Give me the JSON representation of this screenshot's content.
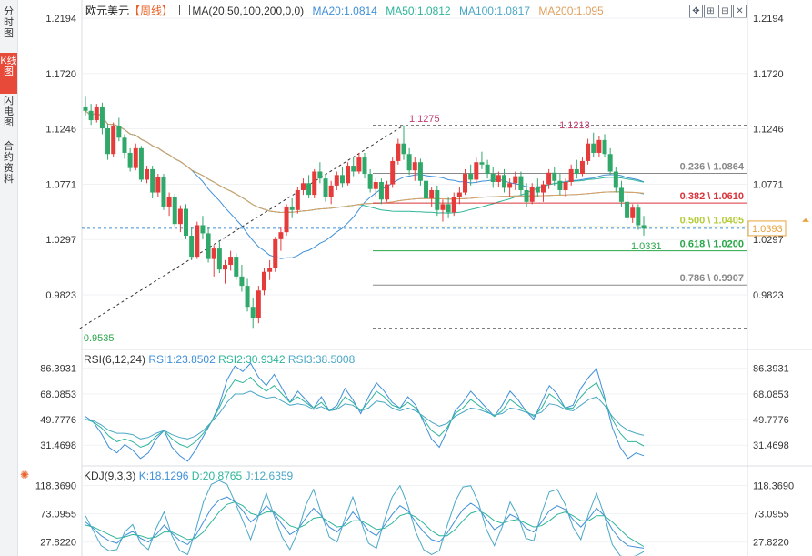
{
  "side_tabs": [
    "分时图",
    "K线图",
    "闪电图",
    "合约资料"
  ],
  "active_tab": 1,
  "header": {
    "symbol": "欧元美元",
    "period": "【周线】",
    "ma_label": "MA(20,50,100,200,0,0)",
    "ma_values": [
      {
        "label": "MA20:1.0814",
        "color": "#3f8fd8"
      },
      {
        "label": "MA50:1.0812",
        "color": "#2fb59a"
      },
      {
        "label": "MA100:1.0817",
        "color": "#4aa8c6"
      },
      {
        "label": "MA200:1.095",
        "color": "#e0a060"
      }
    ]
  },
  "toolbar_icons": [
    "expand-icon",
    "crosshair-icon",
    "draw-icon",
    "close-icon"
  ],
  "chart_data": [
    {
      "type": "candlestick",
      "name": "price",
      "y_ticks": [
        1.2194,
        1.172,
        1.1246,
        1.0771,
        1.0297,
        0.9823
      ],
      "ylim": [
        0.9823,
        1.2194
      ],
      "last_price": 1.0393,
      "last_price_color": "#e8a23a",
      "high_label": "1.1275",
      "low_label": "0.9535",
      "recent_high_label": "1.1213",
      "recent_low_label": "1.0331",
      "fib_levels": [
        {
          "label": "0.236 \\ 1.0864",
          "value": 1.0864,
          "color": "#888888"
        },
        {
          "label": "0.382 \\ 1.0610",
          "value": 1.061,
          "color": "#d9343b"
        },
        {
          "label": "0.500 \\ 1.0405",
          "value": 1.0405,
          "color": "#b5cc3b"
        },
        {
          "label": "0.618 \\ 1.0200",
          "value": 1.02,
          "color": "#2aa64a"
        },
        {
          "label": "0.786 \\ 0.9907",
          "value": 0.9907,
          "color": "#888888"
        }
      ],
      "fib_top": 1.1275,
      "fib_bottom": 0.9535,
      "up_color": "#e63b3b",
      "down_color": "#2fa86a",
      "candles": [
        [
          1.143,
          1.152,
          1.136,
          1.14
        ],
        [
          1.14,
          1.146,
          1.128,
          1.132
        ],
        [
          1.132,
          1.146,
          1.13,
          1.143
        ],
        [
          1.143,
          1.147,
          1.12,
          1.125
        ],
        [
          1.125,
          1.129,
          1.098,
          1.103
        ],
        [
          1.103,
          1.13,
          1.1,
          1.127
        ],
        [
          1.127,
          1.134,
          1.114,
          1.117
        ],
        [
          1.117,
          1.12,
          1.099,
          1.104
        ],
        [
          1.104,
          1.108,
          1.088,
          1.091
        ],
        [
          1.091,
          1.112,
          1.089,
          1.108
        ],
        [
          1.108,
          1.11,
          1.079,
          1.081
        ],
        [
          1.081,
          1.093,
          1.078,
          1.09
        ],
        [
          1.09,
          1.093,
          1.065,
          1.07
        ],
        [
          1.07,
          1.086,
          1.066,
          1.083
        ],
        [
          1.083,
          1.086,
          1.055,
          1.058
        ],
        [
          1.058,
          1.07,
          1.05,
          1.066
        ],
        [
          1.066,
          1.069,
          1.04,
          1.043
        ],
        [
          1.043,
          1.059,
          1.036,
          1.056
        ],
        [
          1.056,
          1.06,
          1.03,
          1.033
        ],
        [
          1.033,
          1.04,
          1.012,
          1.015
        ],
        [
          1.015,
          1.045,
          1.013,
          1.042
        ],
        [
          1.042,
          1.05,
          1.03,
          1.035
        ],
        [
          1.035,
          1.04,
          1.01,
          1.013
        ],
        [
          1.013,
          1.025,
          0.998,
          1.022
        ],
        [
          1.022,
          1.028,
          1.001,
          1.004
        ],
        [
          1.004,
          1.012,
          0.992,
          1.008
        ],
        [
          1.008,
          1.02,
          1.003,
          1.015
        ],
        [
          1.015,
          1.018,
          0.995,
          0.998
        ],
        [
          0.998,
          1.008,
          0.985,
          0.99
        ],
        [
          0.99,
          0.996,
          0.968,
          0.972
        ],
        [
          0.972,
          0.98,
          0.954,
          0.962
        ],
        [
          0.962,
          0.99,
          0.958,
          0.986
        ],
        [
          0.986,
          1.005,
          0.982,
          1.002
        ],
        [
          1.002,
          1.012,
          0.995,
          1.005
        ],
        [
          1.005,
          1.032,
          1.002,
          1.03
        ],
        [
          1.03,
          1.04,
          1.02,
          1.036
        ],
        [
          1.036,
          1.06,
          1.033,
          1.058
        ],
        [
          1.058,
          1.065,
          1.048,
          1.055
        ],
        [
          1.055,
          1.075,
          1.052,
          1.072
        ],
        [
          1.072,
          1.082,
          1.068,
          1.078
        ],
        [
          1.078,
          1.085,
          1.065,
          1.068
        ],
        [
          1.068,
          1.09,
          1.065,
          1.088
        ],
        [
          1.088,
          1.096,
          1.078,
          1.082
        ],
        [
          1.082,
          1.086,
          1.062,
          1.066
        ],
        [
          1.066,
          1.08,
          1.06,
          1.076
        ],
        [
          1.076,
          1.088,
          1.072,
          1.085
        ],
        [
          1.085,
          1.092,
          1.074,
          1.078
        ],
        [
          1.078,
          1.096,
          1.076,
          1.093
        ],
        [
          1.093,
          1.1,
          1.084,
          1.088
        ],
        [
          1.088,
          1.104,
          1.086,
          1.1
        ],
        [
          1.1,
          1.104,
          1.082,
          1.086
        ],
        [
          1.086,
          1.09,
          1.07,
          1.073
        ],
        [
          1.073,
          1.082,
          1.066,
          1.079
        ],
        [
          1.079,
          1.082,
          1.06,
          1.064
        ],
        [
          1.064,
          1.08,
          1.062,
          1.077
        ],
        [
          1.077,
          1.1,
          1.074,
          1.097
        ],
        [
          1.097,
          1.116,
          1.094,
          1.112
        ],
        [
          1.112,
          1.1275,
          1.098,
          1.103
        ],
        [
          1.103,
          1.108,
          1.085,
          1.089
        ],
        [
          1.089,
          1.1,
          1.08,
          1.096
        ],
        [
          1.096,
          1.099,
          1.076,
          1.08
        ],
        [
          1.08,
          1.084,
          1.06,
          1.065
        ],
        [
          1.065,
          1.075,
          1.058,
          1.072
        ],
        [
          1.072,
          1.076,
          1.05,
          1.055
        ],
        [
          1.055,
          1.064,
          1.045,
          1.06
        ],
        [
          1.06,
          1.066,
          1.048,
          1.053
        ],
        [
          1.053,
          1.07,
          1.05,
          1.066
        ],
        [
          1.066,
          1.075,
          1.06,
          1.07
        ],
        [
          1.07,
          1.09,
          1.068,
          1.086
        ],
        [
          1.086,
          1.094,
          1.076,
          1.081
        ],
        [
          1.081,
          1.1,
          1.078,
          1.096
        ],
        [
          1.096,
          1.105,
          1.09,
          1.094
        ],
        [
          1.094,
          1.098,
          1.082,
          1.086
        ],
        [
          1.086,
          1.092,
          1.074,
          1.079
        ],
        [
          1.079,
          1.088,
          1.075,
          1.085
        ],
        [
          1.085,
          1.09,
          1.07,
          1.074
        ],
        [
          1.074,
          1.082,
          1.066,
          1.078
        ],
        [
          1.078,
          1.088,
          1.072,
          1.084
        ],
        [
          1.084,
          1.088,
          1.068,
          1.072
        ],
        [
          1.072,
          1.078,
          1.058,
          1.062
        ],
        [
          1.062,
          1.078,
          1.06,
          1.075
        ],
        [
          1.075,
          1.082,
          1.066,
          1.07
        ],
        [
          1.07,
          1.08,
          1.062,
          1.077
        ],
        [
          1.077,
          1.09,
          1.073,
          1.087
        ],
        [
          1.087,
          1.092,
          1.076,
          1.08
        ],
        [
          1.08,
          1.086,
          1.068,
          1.072
        ],
        [
          1.072,
          1.082,
          1.066,
          1.079
        ],
        [
          1.079,
          1.094,
          1.076,
          1.09
        ],
        [
          1.09,
          1.098,
          1.082,
          1.086
        ],
        [
          1.086,
          1.1,
          1.084,
          1.097
        ],
        [
          1.097,
          1.116,
          1.094,
          1.112
        ],
        [
          1.112,
          1.1213,
          1.1,
          1.104
        ],
        [
          1.104,
          1.118,
          1.1,
          1.115
        ],
        [
          1.115,
          1.12,
          1.1,
          1.103
        ],
        [
          1.103,
          1.108,
          1.085,
          1.088
        ],
        [
          1.088,
          1.092,
          1.07,
          1.074
        ],
        [
          1.074,
          1.08,
          1.058,
          1.062
        ],
        [
          1.062,
          1.068,
          1.045,
          1.048
        ],
        [
          1.048,
          1.06,
          1.044,
          1.057
        ],
        [
          1.057,
          1.06,
          1.038,
          1.042
        ],
        [
          1.042,
          1.05,
          1.0331,
          1.039
        ]
      ]
    },
    {
      "type": "line",
      "name": "RSI(6,12,24)",
      "legend": [
        "RSI(6,12,24)",
        "RSI1:23.8502",
        "RSI2:30.9342",
        "RSI3:38.5008"
      ],
      "legend_colors": [
        "#333333",
        "#3f8fd8",
        "#2fb59a",
        "#4aa8c6"
      ],
      "y_ticks": [
        86.3931,
        68.0853,
        49.7776,
        31.4698
      ],
      "ylim": [
        18,
        92
      ],
      "series": [
        {
          "name": "RSI1",
          "values": [
            52,
            48,
            40,
            30,
            26,
            32,
            28,
            22,
            26,
            36,
            42,
            30,
            24,
            20,
            28,
            38,
            48,
            60,
            78,
            88,
            84,
            90,
            80,
            74,
            82,
            72,
            62,
            70,
            64,
            58,
            66,
            56,
            60,
            72,
            64,
            54,
            66,
            76,
            70,
            62,
            58,
            66,
            60,
            48,
            36,
            30,
            42,
            56,
            62,
            70,
            64,
            58,
            52,
            60,
            70,
            64,
            56,
            50,
            62,
            74,
            68,
            58,
            60,
            72,
            80,
            86,
            66,
            44,
            30,
            22,
            26,
            24
          ]
        },
        {
          "name": "RSI2",
          "values": [
            50,
            48,
            44,
            38,
            34,
            36,
            34,
            30,
            32,
            38,
            42,
            36,
            32,
            30,
            34,
            40,
            48,
            58,
            70,
            78,
            76,
            80,
            74,
            70,
            74,
            68,
            62,
            66,
            62,
            58,
            62,
            56,
            58,
            66,
            62,
            56,
            62,
            70,
            66,
            60,
            58,
            62,
            58,
            50,
            42,
            38,
            44,
            54,
            58,
            64,
            60,
            56,
            52,
            56,
            64,
            60,
            56,
            52,
            58,
            68,
            64,
            58,
            58,
            66,
            72,
            76,
            64,
            50,
            40,
            34,
            34,
            31
          ]
        },
        {
          "name": "RSI3",
          "values": [
            50,
            49,
            46,
            42,
            40,
            40,
            39,
            36,
            37,
            40,
            42,
            39,
            37,
            36,
            38,
            42,
            48,
            54,
            62,
            68,
            68,
            70,
            67,
            65,
            66,
            63,
            60,
            61,
            60,
            57,
            59,
            56,
            57,
            61,
            60,
            56,
            58,
            63,
            62,
            58,
            56,
            58,
            56,
            52,
            48,
            45,
            47,
            52,
            55,
            58,
            57,
            55,
            53,
            54,
            58,
            57,
            55,
            53,
            55,
            61,
            60,
            57,
            56,
            60,
            64,
            66,
            60,
            52,
            46,
            42,
            40,
            38.5
          ]
        }
      ]
    },
    {
      "type": "line",
      "name": "KDJ(9,3,3)",
      "legend": [
        "KDJ(9,3,3)",
        "K:18.1296",
        "D:20.8765",
        "J:12.6359"
      ],
      "legend_colors": [
        "#333333",
        "#3f8fd8",
        "#2fb59a",
        "#4aa8c6"
      ],
      "y_ticks": [
        118.369,
        73.0955,
        27.822
      ],
      "ylim": [
        10,
        135
      ],
      "series": [
        {
          "name": "K",
          "values": [
            60,
            50,
            38,
            30,
            26,
            38,
            45,
            34,
            28,
            40,
            55,
            42,
            30,
            24,
            38,
            60,
            82,
            95,
            100,
            92,
            78,
            60,
            70,
            86,
            74,
            56,
            40,
            48,
            66,
            82,
            70,
            52,
            44,
            58,
            76,
            62,
            46,
            38,
            54,
            72,
            86,
            78,
            60,
            44,
            32,
            28,
            42,
            62,
            80,
            90,
            82,
            64,
            48,
            56,
            72,
            66,
            50,
            44,
            60,
            78,
            86,
            80,
            64,
            52,
            66,
            82,
            70,
            48,
            32,
            22,
            20,
            18.1
          ]
        },
        {
          "name": "D",
          "values": [
            55,
            52,
            46,
            40,
            34,
            36,
            40,
            38,
            34,
            36,
            44,
            44,
            38,
            32,
            34,
            44,
            60,
            76,
            88,
            92,
            86,
            74,
            70,
            76,
            76,
            66,
            54,
            50,
            56,
            66,
            68,
            60,
            52,
            54,
            62,
            62,
            56,
            48,
            50,
            58,
            70,
            74,
            68,
            58,
            46,
            38,
            38,
            48,
            62,
            74,
            78,
            72,
            62,
            58,
            62,
            64,
            58,
            52,
            54,
            62,
            72,
            76,
            70,
            62,
            62,
            70,
            70,
            60,
            48,
            36,
            28,
            20.9
          ]
        },
        {
          "name": "J",
          "values": [
            70,
            46,
            22,
            14,
            16,
            44,
            56,
            26,
            16,
            50,
            76,
            38,
            14,
            8,
            46,
            92,
            120,
            126,
            120,
            92,
            62,
            32,
            70,
            106,
            70,
            36,
            16,
            44,
            86,
            112,
            74,
            36,
            28,
            66,
            100,
            62,
            26,
            18,
            62,
            100,
            118,
            86,
            44,
            16,
            8,
            14,
            54,
            92,
            116,
            118,
            90,
            48,
            22,
            52,
            92,
            70,
            34,
            30,
            74,
            108,
            112,
            88,
            52,
            32,
            74,
            106,
            70,
            24,
            6,
            2,
            6,
            12.6
          ]
        }
      ]
    }
  ]
}
